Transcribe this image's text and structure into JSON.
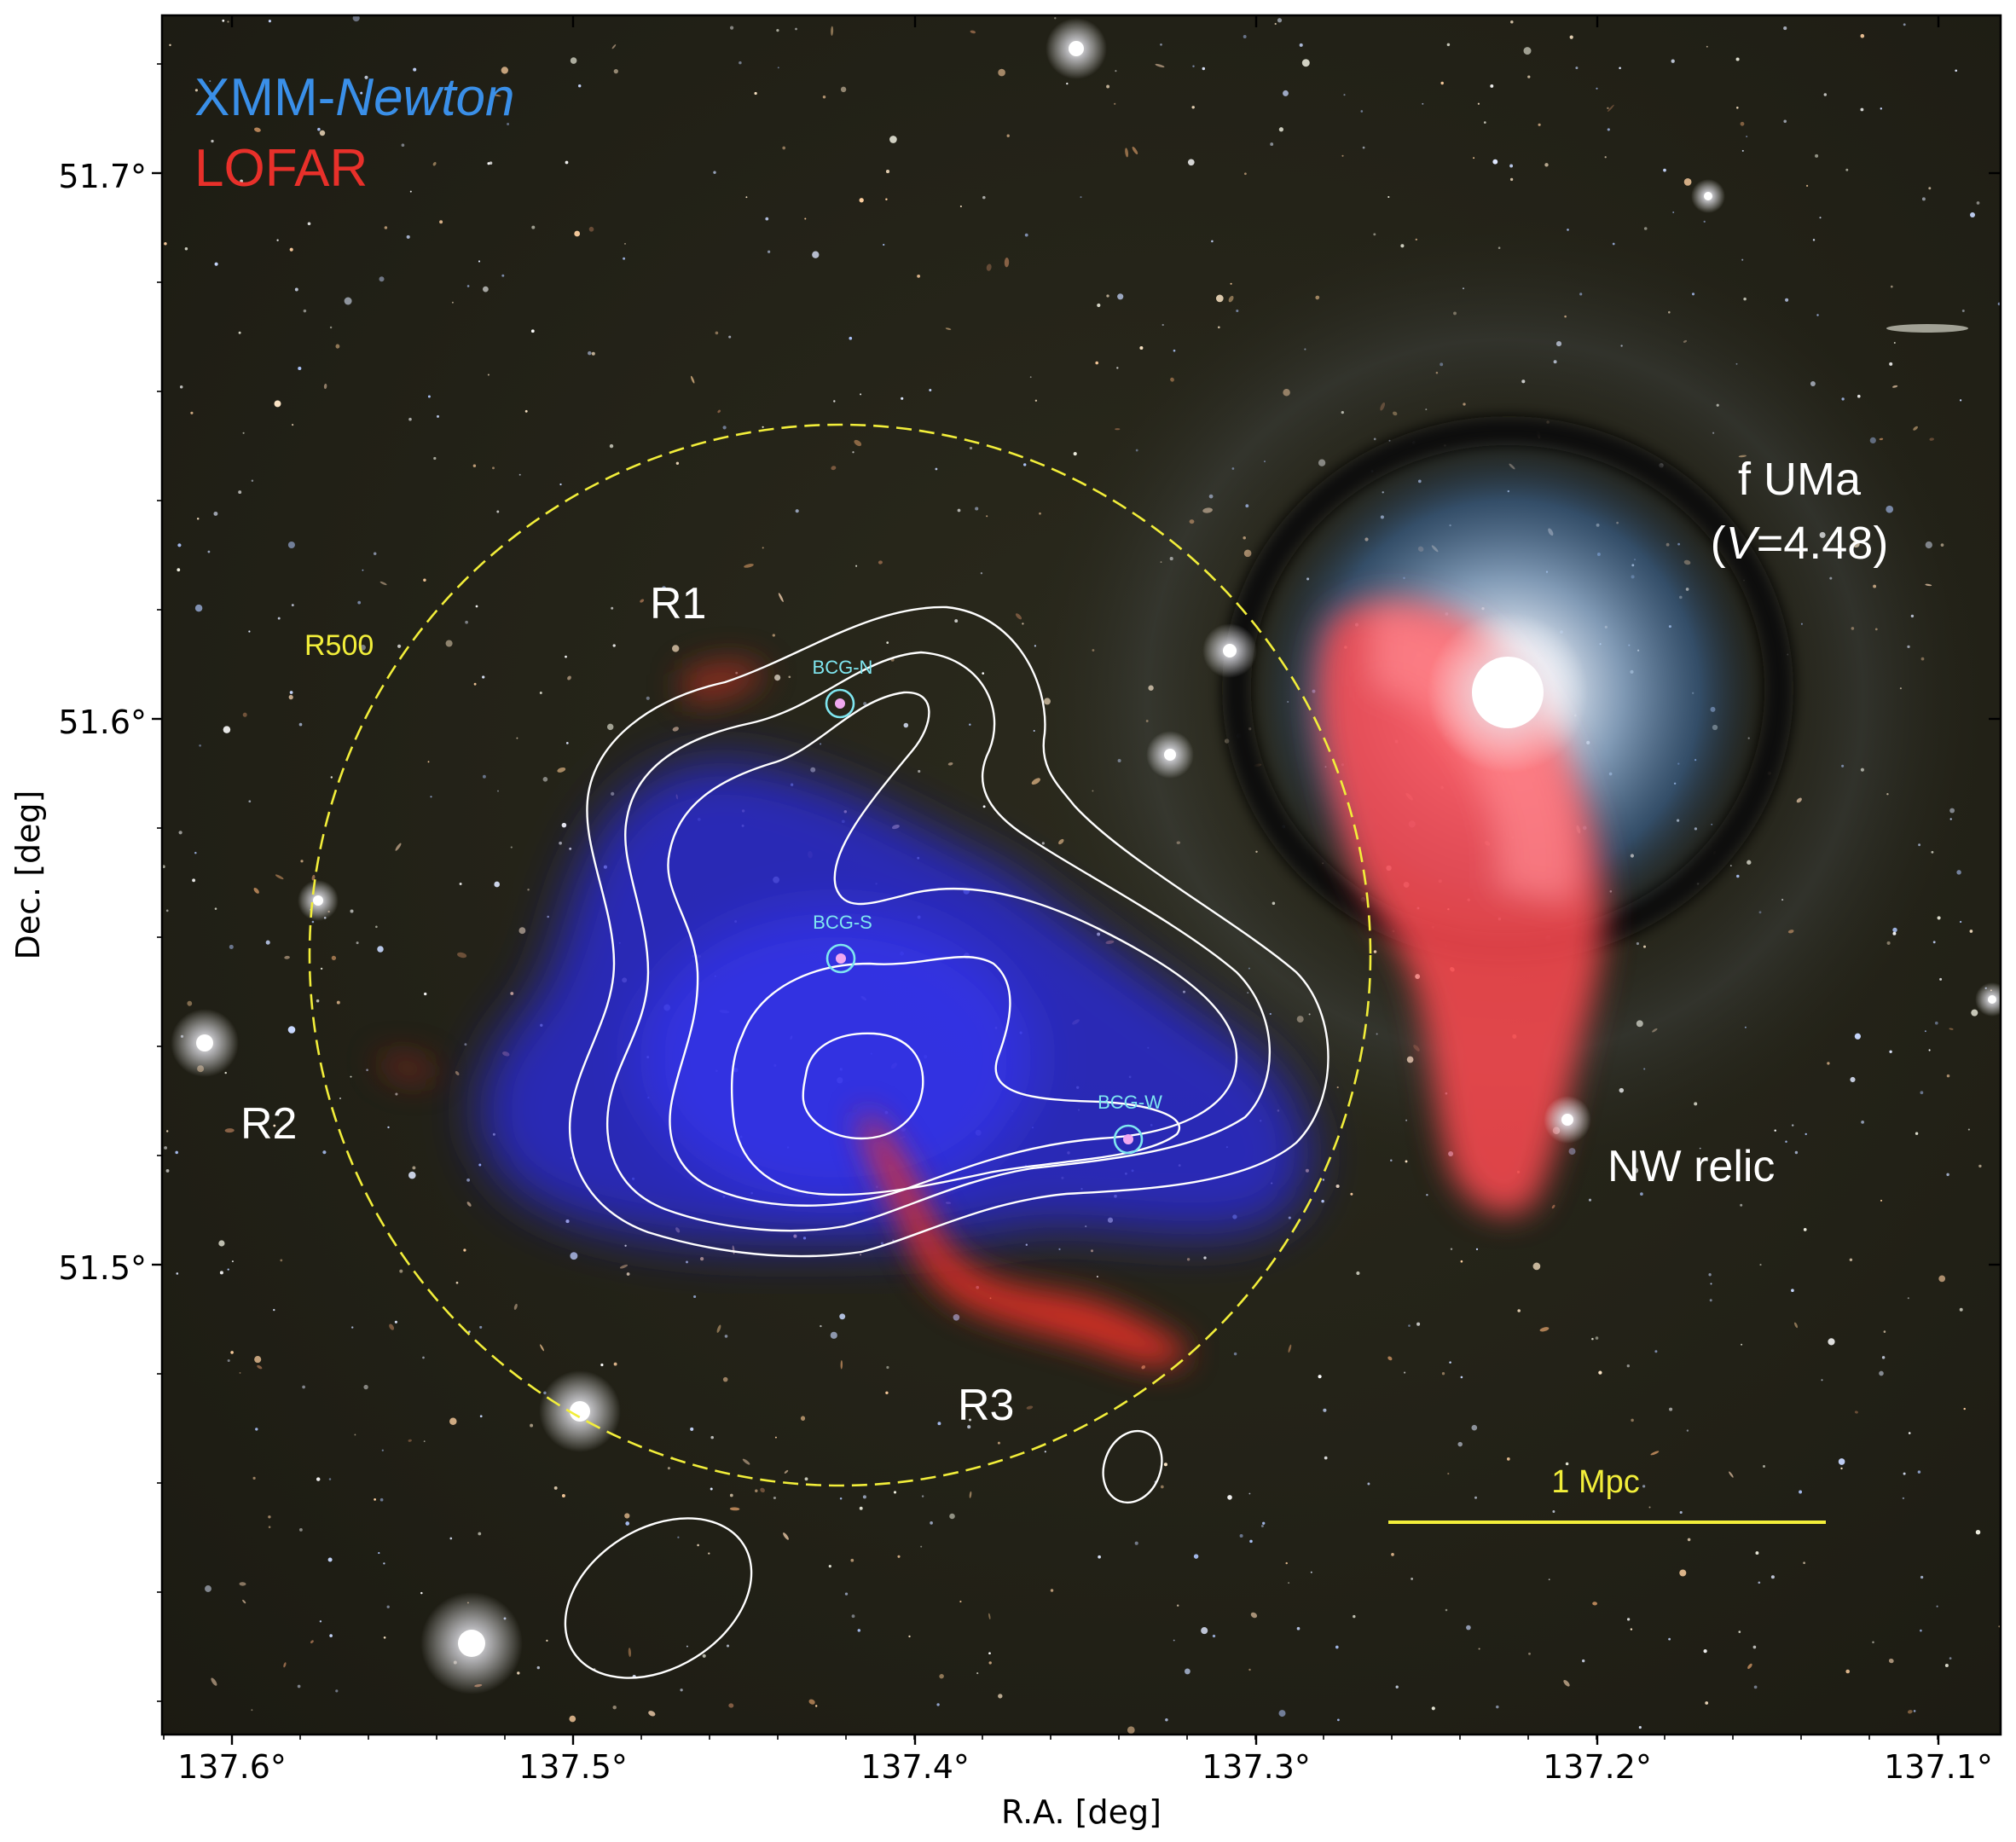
{
  "legend": {
    "xmm": "XMM-",
    "xmm_italic": "Newton",
    "lofar": "LOFAR"
  },
  "star": {
    "name": "f UMa",
    "mag_prefix": "(",
    "mag_var": "V",
    "mag_value": "=4.48)"
  },
  "regions": {
    "r1": "R1",
    "r2": "R2",
    "r3": "R3",
    "r500": "R500",
    "nw_relic": "NW relic"
  },
  "bcgs": {
    "north": "BCG-N",
    "south": "BCG-S",
    "west": "BCG-W"
  },
  "scale_bar": {
    "label": "1 Mpc"
  },
  "axes": {
    "xlabel": "R.A. [deg]",
    "ylabel": "Dec. [deg]",
    "xticks": [
      "137.6°",
      "137.5°",
      "137.4°",
      "137.3°",
      "137.2°",
      "137.1°"
    ],
    "yticks": [
      "51.7°",
      "51.6°",
      "51.5°"
    ]
  },
  "colors": {
    "xmm": "#3a8fe8",
    "lofar": "#e8302a",
    "r500": "#f2ee3a",
    "bcg": "#7fe6f0",
    "contour": "#ffffff",
    "background": "#1e1d14"
  }
}
